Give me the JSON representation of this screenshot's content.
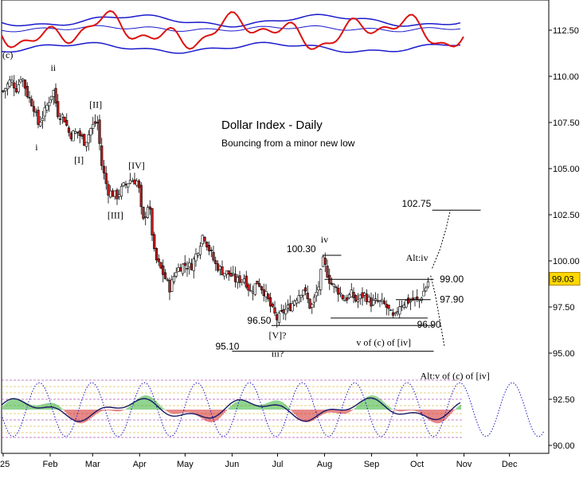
{
  "chart_data": {
    "type": "candlestick",
    "title": "Dollar Index - Daily",
    "subtitle": "Bouncing from a minor new low",
    "x_tick_labels": [
      "25",
      "Feb",
      "Mar",
      "Apr",
      "May",
      "Jun",
      "Jul",
      "Aug",
      "Sep",
      "Oct",
      "Nov",
      "Dec"
    ],
    "y_tick_labels": [
      "112.50",
      "110.00",
      "107.50",
      "105.00",
      "102.50",
      "100.00",
      "97.50",
      "95.00",
      "92.50",
      "90.00"
    ],
    "price_axis": {
      "min": 90.0,
      "max": 114.0,
      "ticks": [
        90,
        92.5,
        95,
        97.5,
        100,
        102.5,
        105,
        107.5,
        110,
        112.5
      ]
    },
    "last_price": "99.03",
    "candles_close_path": [
      [
        "2025-01-01",
        109.2
      ],
      [
        "2025-01-06",
        109.8
      ],
      [
        "2025-01-10",
        109.3
      ],
      [
        "2025-01-13",
        110.1
      ],
      [
        "2025-01-17",
        109.0
      ],
      [
        "2025-01-21",
        108.4
      ],
      [
        "2025-01-24",
        107.4
      ],
      [
        "2025-01-28",
        108.0
      ],
      [
        "2025-02-03",
        109.3
      ],
      [
        "2025-02-06",
        108.0
      ],
      [
        "2025-02-10",
        107.8
      ],
      [
        "2025-02-14",
        106.8
      ],
      [
        "2025-02-19",
        107.0
      ],
      [
        "2025-02-24",
        106.4
      ],
      [
        "2025-02-28",
        107.2
      ],
      [
        "2025-03-04",
        107.6
      ],
      [
        "2025-03-07",
        105.2
      ],
      [
        "2025-03-11",
        103.8
      ],
      [
        "2025-03-17",
        103.5
      ],
      [
        "2025-03-21",
        104.0
      ],
      [
        "2025-03-26",
        104.4
      ],
      [
        "2025-03-31",
        104.3
      ],
      [
        "2025-04-03",
        102.0
      ],
      [
        "2025-04-07",
        103.2
      ],
      [
        "2025-04-11",
        100.2
      ],
      [
        "2025-04-16",
        99.4
      ],
      [
        "2025-04-21",
        98.5
      ],
      [
        "2025-04-25",
        99.5
      ],
      [
        "2025-04-30",
        99.8
      ],
      [
        "2025-05-05",
        99.7
      ],
      [
        "2025-05-09",
        100.5
      ],
      [
        "2025-05-13",
        101.5
      ],
      [
        "2025-05-16",
        100.8
      ],
      [
        "2025-05-21",
        99.8
      ],
      [
        "2025-05-26",
        99.4
      ],
      [
        "2025-05-30",
        99.3
      ],
      [
        "2025-06-04",
        98.9
      ],
      [
        "2025-06-09",
        99.1
      ],
      [
        "2025-06-13",
        98.3
      ],
      [
        "2025-06-18",
        98.9
      ],
      [
        "2025-06-23",
        98.2
      ],
      [
        "2025-06-27",
        97.4
      ],
      [
        "2025-07-01",
        96.8
      ],
      [
        "2025-07-04",
        97.2
      ],
      [
        "2025-07-09",
        97.5
      ],
      [
        "2025-07-14",
        98.1
      ],
      [
        "2025-07-18",
        98.5
      ],
      [
        "2025-07-23",
        97.4
      ],
      [
        "2025-07-28",
        98.6
      ],
      [
        "2025-07-31",
        100.0
      ],
      [
        "2025-08-05",
        98.8
      ],
      [
        "2025-08-11",
        98.3
      ],
      [
        "2025-08-14",
        97.9
      ],
      [
        "2025-08-19",
        98.2
      ],
      [
        "2025-08-22",
        97.8
      ],
      [
        "2025-08-27",
        98.2
      ],
      [
        "2025-09-01",
        97.7
      ],
      [
        "2025-09-05",
        97.8
      ],
      [
        "2025-09-10",
        97.6
      ],
      [
        "2025-09-16",
        96.8
      ],
      [
        "2025-09-19",
        97.6
      ],
      [
        "2025-09-24",
        97.8
      ],
      [
        "2025-09-29",
        97.9
      ],
      [
        "2025-10-02",
        97.8
      ],
      [
        "2025-10-07",
        98.6
      ],
      [
        "2025-10-09",
        99.03
      ]
    ],
    "levels": [
      {
        "label": "102.75",
        "value": 102.75,
        "from": "2025-10-11",
        "to": "2025-11-12"
      },
      {
        "label": "100.30",
        "value": 100.3,
        "from": "2025-07-31",
        "to": "2025-08-12"
      },
      {
        "label": "99.00",
        "value": 99.0,
        "from": "2025-08-01",
        "to": "2025-10-12"
      },
      {
        "label": "97.90",
        "value": 97.9,
        "from": "2025-09-17",
        "to": "2025-10-10"
      },
      {
        "label": "96.90",
        "value": 96.9,
        "from": "2025-08-05",
        "to": "2025-10-08"
      },
      {
        "label": "96.50",
        "value": 96.5,
        "from": "2025-06-27",
        "to": "2025-10-12"
      },
      {
        "label": "95.10",
        "value": 95.1,
        "from": "2025-06-01",
        "to": "2025-10-12"
      }
    ],
    "wave_labels": [
      {
        "text": "(c)",
        "date": "2025-01-04",
        "value": 111.0,
        "color": "#000000"
      },
      {
        "text": "ii",
        "date": "2025-02-03",
        "value": 110.3,
        "color": "#000000"
      },
      {
        "text": "i",
        "date": "2025-01-23",
        "value": 106.0,
        "color": "#000000"
      },
      {
        "text": "[II]",
        "date": "2025-03-03",
        "value": 108.3,
        "color": "#000000"
      },
      {
        "text": "[I]",
        "date": "2025-02-20",
        "value": 105.3,
        "color": "#000000"
      },
      {
        "text": "[IV]",
        "date": "2025-03-30",
        "value": 105.0,
        "color": "#000000"
      },
      {
        "text": "[III]",
        "date": "2025-03-16",
        "value": 102.3,
        "color": "#000000"
      },
      {
        "text": "iv",
        "date": "2025-08-01",
        "value": 101.0,
        "color": "#000000"
      },
      {
        "text": "[V]?",
        "date": "2025-07-01",
        "value": 95.8,
        "color": "#000000"
      },
      {
        "text": "iii?",
        "date": "2025-07-01",
        "value": 94.8,
        "color": "#000000"
      },
      {
        "text": "v of (c) of [iv]",
        "date": "2025-09-09",
        "value": 95.4,
        "color": "#000000"
      },
      {
        "text": "Alt:iv",
        "date": "2025-10-01",
        "value": 100.0,
        "color": "#8b1a1a"
      },
      {
        "text": "Alt:v of (c) of [iv]",
        "date": "2025-10-26",
        "value": 93.6,
        "color": "#8b1a1a"
      }
    ]
  }
}
